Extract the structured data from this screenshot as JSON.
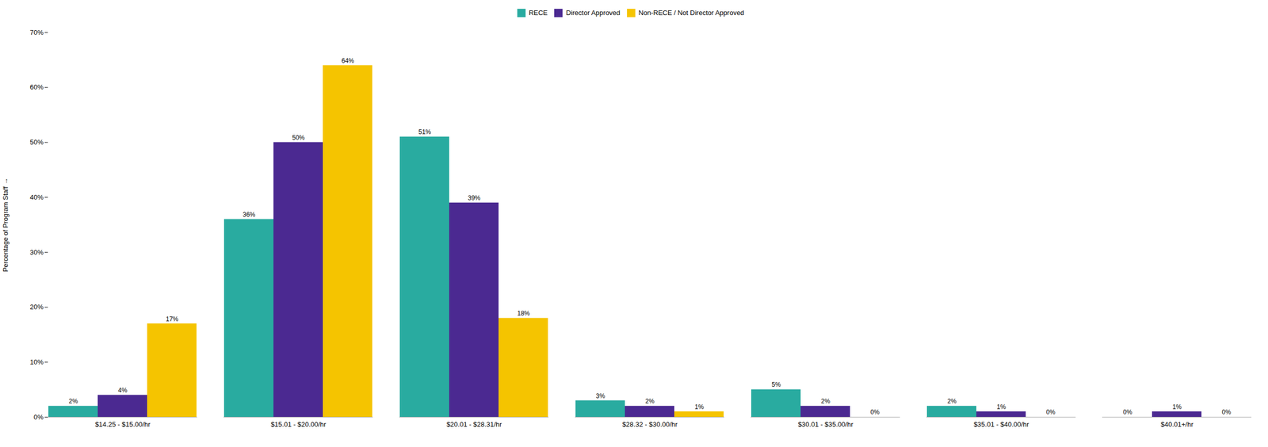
{
  "chart_data": {
    "type": "bar",
    "categories": [
      "$14.25 - $15.00/hr",
      "$15.01 - $20.00/hr",
      "$20.01 - $28.31/hr",
      "$28.32 - $30.00/hr",
      "$30.01 - $35.00/hr",
      "$35.01 - $40.00/hr",
      "$40.01+/hr"
    ],
    "series": [
      {
        "name": "RECE",
        "color": "#29ABA0",
        "values": [
          2,
          36,
          51,
          3,
          5,
          2,
          0
        ],
        "value_labels": [
          "2%",
          "36%",
          "51%",
          "3%",
          "5%",
          "2%",
          "0%"
        ]
      },
      {
        "name": "Director Approved",
        "color": "#4B2991",
        "values": [
          4,
          50,
          39,
          2,
          2,
          1,
          1
        ],
        "value_labels": [
          "4%",
          "50%",
          "39%",
          "2%",
          "2%",
          "1%",
          "1%"
        ]
      },
      {
        "name": "Non-RECE / Not Director Approved",
        "color": "#F5C400",
        "values": [
          17,
          64,
          18,
          1,
          0,
          0,
          0
        ],
        "value_labels": [
          "17%",
          "64%",
          "18%",
          "1%",
          "0%",
          "0%",
          "0%"
        ]
      }
    ],
    "y_label": "Percentage of Program Staff",
    "ylim": [
      0,
      70
    ],
    "yticks": [
      {
        "value": 0,
        "label": "0%"
      },
      {
        "value": 10,
        "label": "10%"
      },
      {
        "value": 20,
        "label": "20%"
      },
      {
        "value": 30,
        "label": "30%"
      },
      {
        "value": 40,
        "label": "40%"
      },
      {
        "value": 50,
        "label": "50%"
      },
      {
        "value": 60,
        "label": "60%"
      },
      {
        "value": 70,
        "label": "70%"
      }
    ],
    "grid": false,
    "legend": "top",
    "data_labels": true
  }
}
